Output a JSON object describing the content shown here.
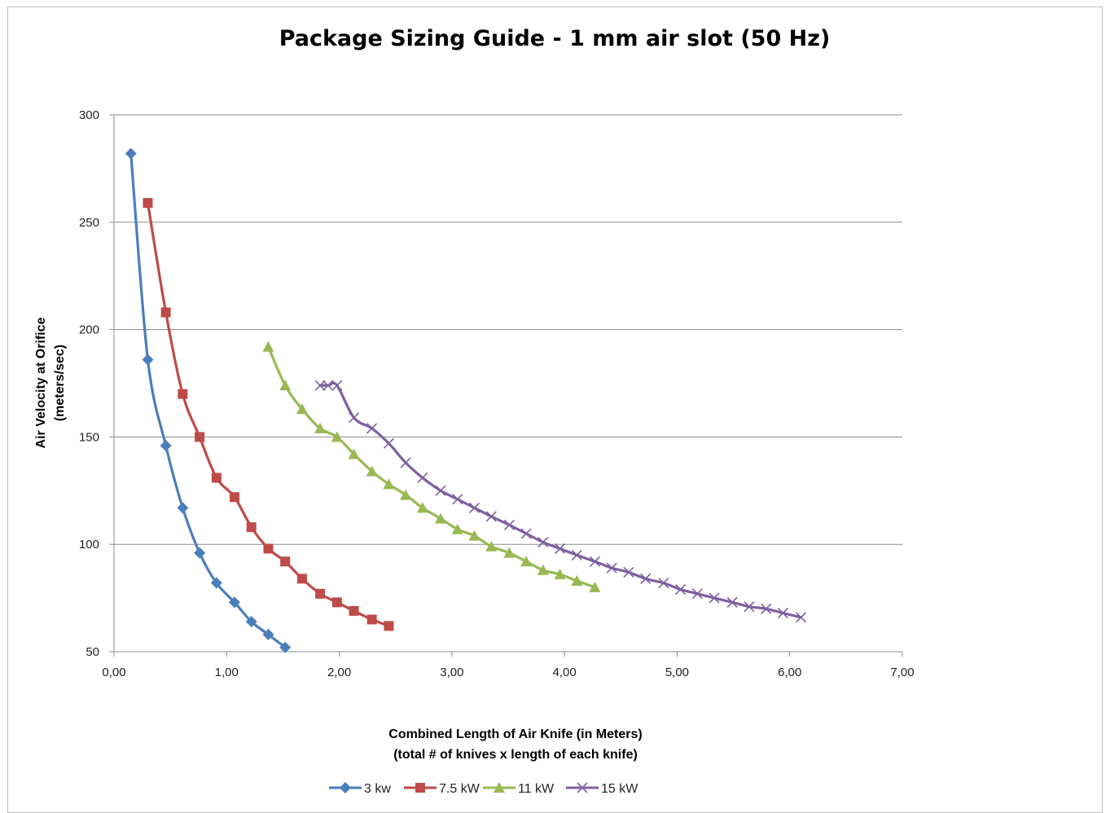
{
  "chart_data": {
    "type": "scatter",
    "title": "Package Sizing Guide - 1 mm air slot (50 Hz)",
    "xlabel": [
      "Combined Length of Air Knife (in Meters)",
      "(total # of knives x length of each knife)"
    ],
    "ylabel": [
      "Air Velocity at Orifice",
      "(meters/sec)"
    ],
    "xlim": [
      0,
      7
    ],
    "ylim": [
      50,
      300
    ],
    "xticks": [
      0,
      1,
      2,
      3,
      4,
      5,
      6,
      7
    ],
    "xtick_labels": [
      "0,00",
      "1,00",
      "2,00",
      "3,00",
      "4,00",
      "5,00",
      "6,00",
      "7,00"
    ],
    "yticks": [
      50,
      100,
      150,
      200,
      250,
      300
    ],
    "ytick_labels": [
      "50",
      "100",
      "150",
      "200",
      "250",
      "300"
    ],
    "grid": "horizontal",
    "legend_position": "bottom",
    "series": [
      {
        "name": "3 kw",
        "color": "#4a7ebb",
        "marker": "diamond",
        "x": [
          0.15,
          0.3,
          0.46,
          0.61,
          0.76,
          0.91,
          1.07,
          1.22,
          1.37,
          1.52
        ],
        "y": [
          282,
          186,
          146,
          117,
          96,
          82,
          73,
          64,
          58,
          52
        ]
      },
      {
        "name": "7.5 kW",
        "color": "#be4b48",
        "marker": "square",
        "x": [
          0.3,
          0.46,
          0.61,
          0.76,
          0.91,
          1.07,
          1.22,
          1.37,
          1.52,
          1.67,
          1.83,
          1.98,
          2.13,
          2.29,
          2.44
        ],
        "y": [
          259,
          208,
          170,
          150,
          131,
          122,
          108,
          98,
          92,
          84,
          77,
          73,
          69,
          65,
          62
        ]
      },
      {
        "name": "11 kW",
        "color": "#98b954",
        "marker": "triangle",
        "x": [
          1.37,
          1.52,
          1.67,
          1.83,
          1.98,
          2.13,
          2.29,
          2.44,
          2.59,
          2.74,
          2.9,
          3.05,
          3.2,
          3.35,
          3.51,
          3.66,
          3.81,
          3.96,
          4.11,
          4.27
        ],
        "y": [
          192,
          174,
          163,
          154,
          150,
          142,
          134,
          128,
          123,
          117,
          112,
          107,
          104,
          99,
          96,
          92,
          88,
          86,
          83,
          80
        ]
      },
      {
        "name": "15 kW",
        "color": "#7d60a0",
        "marker": "x",
        "x": [
          1.83,
          1.9,
          1.98,
          2.13,
          2.29,
          2.44,
          2.59,
          2.74,
          2.9,
          3.05,
          3.2,
          3.35,
          3.51,
          3.66,
          3.81,
          3.96,
          4.11,
          4.27,
          4.42,
          4.57,
          4.72,
          4.88,
          5.03,
          5.18,
          5.33,
          5.49,
          5.64,
          5.79,
          5.94,
          6.1
        ],
        "y": [
          174,
          174,
          174,
          159,
          154,
          147,
          138,
          131,
          125,
          121,
          117,
          113,
          109,
          105,
          101,
          98,
          95,
          92,
          89,
          87,
          84,
          82,
          79,
          77,
          75,
          73,
          71,
          70,
          68,
          66
        ]
      }
    ]
  }
}
